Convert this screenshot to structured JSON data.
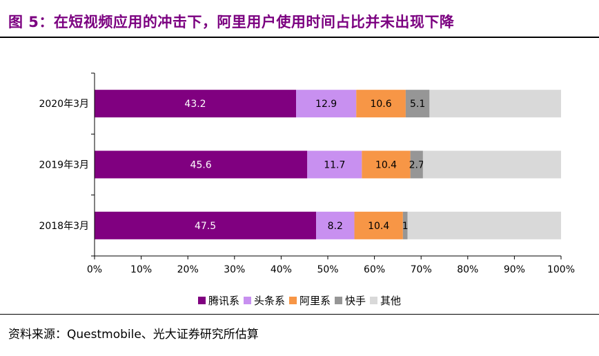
{
  "title": "图 5：在短视频应用的冲击下，阿里用户使用时间占比并未出现下降",
  "source": "资料来源：Questmobile、光大证券研究所估算",
  "colors": {
    "title": "#7B0080",
    "axis": "#000000"
  },
  "chart_data": {
    "type": "bar",
    "orientation": "horizontal",
    "stacked": true,
    "categories": [
      "2020年3月",
      "2019年3月",
      "2018年3月"
    ],
    "series": [
      {
        "name": "腾讯系",
        "color": "#800080",
        "label_color": "#ffffff",
        "values": [
          43.2,
          45.6,
          47.5
        ],
        "labels": [
          "43.2",
          "45.6",
          "47.5"
        ]
      },
      {
        "name": "头条系",
        "color": "#C890F0",
        "label_color": "#000000",
        "values": [
          12.9,
          11.7,
          8.2
        ],
        "labels": [
          "12.9",
          "11.7",
          "8.2"
        ]
      },
      {
        "name": "阿里系",
        "color": "#F79646",
        "label_color": "#000000",
        "values": [
          10.6,
          10.4,
          10.4
        ],
        "labels": [
          "10.6",
          "10.4",
          "10.4"
        ]
      },
      {
        "name": "快手",
        "color": "#969696",
        "label_color": "#000000",
        "values": [
          5.1,
          2.7,
          1
        ],
        "labels": [
          "5.1",
          "2.7",
          "1"
        ]
      },
      {
        "name": "其他",
        "color": "#D9D9D9",
        "label_color": "#000000",
        "values": [
          28.2,
          29.6,
          32.9
        ],
        "labels": [
          "",
          "",
          ""
        ]
      }
    ],
    "xlim": [
      0,
      100
    ],
    "xticks": [
      "0%",
      "10%",
      "20%",
      "30%",
      "40%",
      "50%",
      "60%",
      "70%",
      "80%",
      "90%",
      "100%"
    ],
    "grid": false,
    "legend_position": "bottom"
  }
}
